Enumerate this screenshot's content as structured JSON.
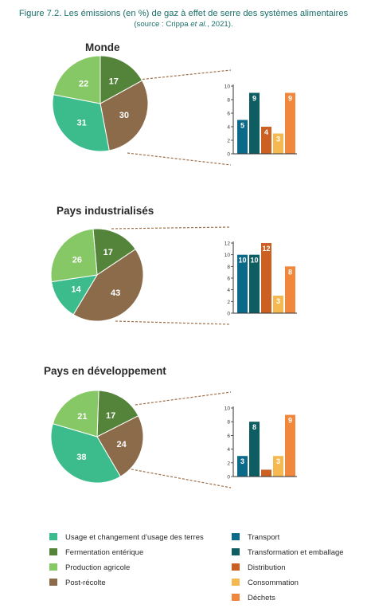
{
  "figure": {
    "title": "Figure 7.2. Les émissions (en %) de gaz à effet de serre des systèmes alimentaires",
    "source_prefix": "(source : Crippa ",
    "source_italic": "et al.",
    "source_suffix": ", 2021)."
  },
  "colors": {
    "pie": [
      "#3cbc8c",
      "#54843a",
      "#86c865",
      "#8b6b4a"
    ],
    "bar": [
      "#0b6a8a",
      "#0e5d63",
      "#cc5f22",
      "#f6b94f",
      "#f0873c"
    ],
    "leader": "#a0704a",
    "axis": "#333333"
  },
  "chart_data": [
    {
      "type": "pie",
      "title": "Monde",
      "categories": [
        "Usage et changement d'usage des terres",
        "Fermentation entérique",
        "Production agricole",
        "Post-récolte"
      ],
      "values": [
        31,
        17,
        22,
        30
      ],
      "breakdown": {
        "type": "bar",
        "categories": [
          "Transport",
          "Transformation et emballage",
          "Distribution",
          "Consommation",
          "Déchets"
        ],
        "values": [
          5,
          9,
          4,
          3,
          9
        ],
        "ylim": [
          0,
          10
        ],
        "yticks": [
          0,
          2,
          4,
          6,
          8,
          10
        ]
      }
    },
    {
      "type": "pie",
      "title": "Pays industrialisés",
      "categories": [
        "Usage et changement d'usage des terres",
        "Fermentation entérique",
        "Production agricole",
        "Post-récolte"
      ],
      "values": [
        14,
        17,
        26,
        43
      ],
      "breakdown": {
        "type": "bar",
        "categories": [
          "Transport",
          "Transformation et emballage",
          "Distribution",
          "Consommation",
          "Déchets"
        ],
        "values": [
          10,
          10,
          12,
          3,
          8
        ],
        "ylim": [
          0,
          12
        ],
        "yticks": [
          0,
          2,
          4,
          6,
          8,
          10,
          12
        ]
      }
    },
    {
      "type": "pie",
      "title": "Pays en développement",
      "categories": [
        "Usage et changement d'usage des terres",
        "Fermentation entérique",
        "Production agricole",
        "Post-récolte"
      ],
      "values": [
        38,
        17,
        21,
        24
      ],
      "breakdown": {
        "type": "bar",
        "categories": [
          "Transport",
          "Transformation et emballage",
          "Distribution",
          "Consommation",
          "Déchets"
        ],
        "values": [
          3,
          8,
          1,
          3,
          9
        ],
        "value_labels": [
          "3",
          "8",
          "",
          "3",
          "9"
        ],
        "ylim": [
          0,
          10
        ],
        "yticks": [
          0,
          2,
          4,
          6,
          8,
          10
        ]
      }
    }
  ],
  "legend": {
    "pie_items": [
      "Usage et changement d’usage des terres",
      "Fermentation entérique",
      "Production agricole",
      "Post-récolte"
    ],
    "bar_items": [
      "Transport",
      "Transformation et emballage",
      "Distribution",
      "Consommation",
      "Déchets"
    ]
  }
}
